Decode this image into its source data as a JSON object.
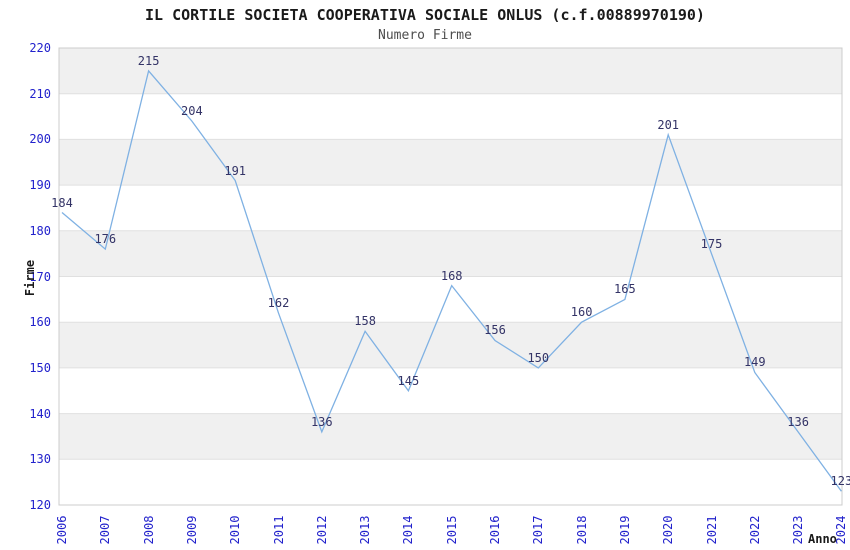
{
  "chart_data": {
    "type": "line",
    "title": "IL CORTILE SOCIETA COOPERATIVA SOCIALE ONLUS (c.f.00889970190)",
    "subtitle": "Numero Firme",
    "xlabel": "Anno",
    "ylabel": "Firme",
    "x": [
      2006,
      2007,
      2008,
      2009,
      2010,
      2011,
      2012,
      2013,
      2014,
      2015,
      2016,
      2017,
      2018,
      2019,
      2020,
      2021,
      2022,
      2023,
      2024
    ],
    "values": [
      184,
      176,
      215,
      204,
      191,
      162,
      136,
      158,
      145,
      168,
      156,
      150,
      160,
      165,
      201,
      175,
      149,
      136,
      123
    ],
    "ylim": [
      120,
      220
    ],
    "ytick_step": 10,
    "grid": true,
    "legend": "none",
    "colors": {
      "line": "#7fb1e3",
      "tick_label": "#2222cc",
      "value_label": "#333366",
      "band_gray": "#f0f0f0",
      "band_white": "#ffffff",
      "gridline": "#e0e0e0",
      "plot_border": "#cccccc",
      "title": "#1a1a1a",
      "subtitle": "#4d4d4d"
    }
  }
}
